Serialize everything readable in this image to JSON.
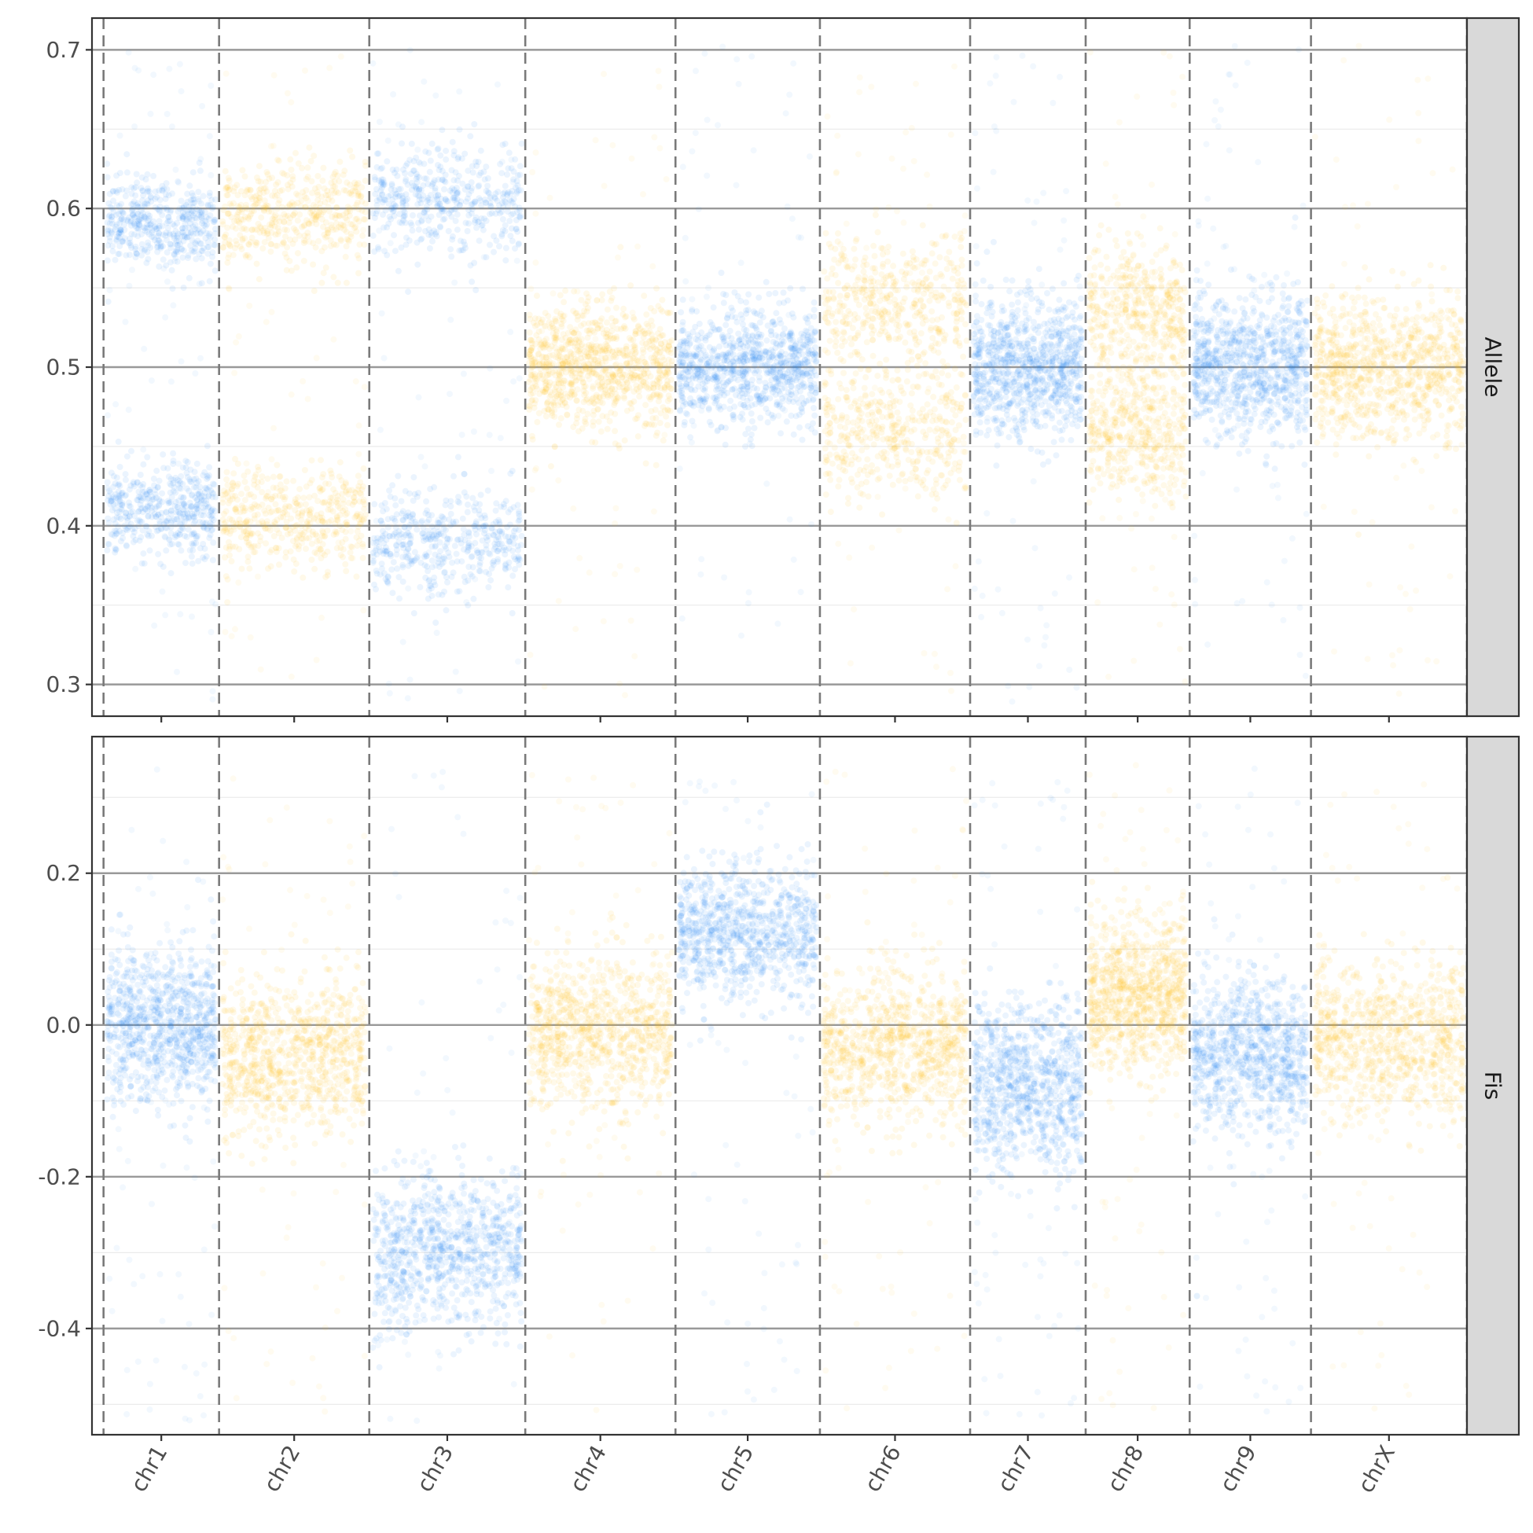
{
  "chart_data": {
    "type": "scatter",
    "x_axis": {
      "categories": [
        "chr1",
        "chr2",
        "chr3",
        "chr4",
        "chr5",
        "chr6",
        "chr7",
        "chr8",
        "chr9",
        "chrX"
      ],
      "boundaries": [
        0,
        10,
        23,
        36.5,
        49.5,
        62,
        75,
        85,
        94,
        104.5,
        118
      ]
    },
    "colors": {
      "odd": "#1e88f5",
      "even": "#ffc107"
    },
    "panels": [
      {
        "strip": "Allele",
        "ylim": [
          0.28,
          0.72
        ],
        "y_ticks": [
          "0.3",
          "0.4",
          "0.5",
          "0.6",
          "0.7"
        ],
        "y_tick_values": [
          0.3,
          0.4,
          0.5,
          0.6,
          0.7
        ],
        "y_minor": [
          0.35,
          0.45,
          0.55,
          0.65
        ],
        "series": [
          {
            "chromosome": "chr1",
            "color": "odd",
            "bands": [
              0.41,
              0.59
            ],
            "spread": 0.014
          },
          {
            "chromosome": "chr2",
            "color": "even",
            "bands": [
              0.405,
              0.595
            ],
            "spread": 0.016
          },
          {
            "chromosome": "chr3",
            "color": "odd",
            "bands": [
              0.39,
              0.605
            ],
            "spread": 0.017
          },
          {
            "chromosome": "chr4",
            "color": "even",
            "bands": [
              0.5
            ],
            "spread": 0.02
          },
          {
            "chromosome": "chr5",
            "color": "odd",
            "bands": [
              0.5
            ],
            "spread": 0.018
          },
          {
            "chromosome": "chr6",
            "color": "even",
            "bands": [
              0.46,
              0.54
            ],
            "spread": 0.02
          },
          {
            "chromosome": "chr7",
            "color": "odd",
            "bands": [
              0.5
            ],
            "spread": 0.022
          },
          {
            "chromosome": "chr8",
            "color": "even",
            "bands": [
              0.46,
              0.535
            ],
            "spread": 0.02
          },
          {
            "chromosome": "chr9",
            "color": "odd",
            "bands": [
              0.5
            ],
            "spread": 0.022
          },
          {
            "chromosome": "chrX",
            "color": "even",
            "bands": [
              0.5
            ],
            "spread": 0.022
          }
        ]
      },
      {
        "strip": "Fis",
        "ylim": [
          -0.54,
          0.38
        ],
        "y_ticks": [
          "-0.4",
          "-0.2",
          "0.0",
          "0.2"
        ],
        "y_tick_values": [
          -0.4,
          -0.2,
          0.0,
          0.2
        ],
        "y_minor": [
          -0.5,
          -0.3,
          -0.1,
          0.1,
          0.3
        ],
        "series": [
          {
            "chromosome": "chr1",
            "color": "odd",
            "bands": [
              0.0
            ],
            "spread": 0.05
          },
          {
            "chromosome": "chr2",
            "color": "even",
            "bands": [
              -0.04
            ],
            "spread": 0.05
          },
          {
            "chromosome": "chr3",
            "color": "odd",
            "bands": [
              -0.3
            ],
            "spread": 0.05
          },
          {
            "chromosome": "chr4",
            "color": "even",
            "bands": [
              -0.01
            ],
            "spread": 0.05
          },
          {
            "chromosome": "chr5",
            "color": "odd",
            "bands": [
              0.12
            ],
            "spread": 0.045
          },
          {
            "chromosome": "chr6",
            "color": "even",
            "bands": [
              -0.03
            ],
            "spread": 0.05
          },
          {
            "chromosome": "chr7",
            "color": "odd",
            "bands": [
              -0.08
            ],
            "spread": 0.055
          },
          {
            "chromosome": "chr8",
            "color": "even",
            "bands": [
              0.04
            ],
            "spread": 0.05
          },
          {
            "chromosome": "chr9",
            "color": "odd",
            "bands": [
              -0.04
            ],
            "spread": 0.05
          },
          {
            "chromosome": "chrX",
            "color": "even",
            "bands": [
              -0.02
            ],
            "spread": 0.05
          }
        ]
      }
    ]
  }
}
